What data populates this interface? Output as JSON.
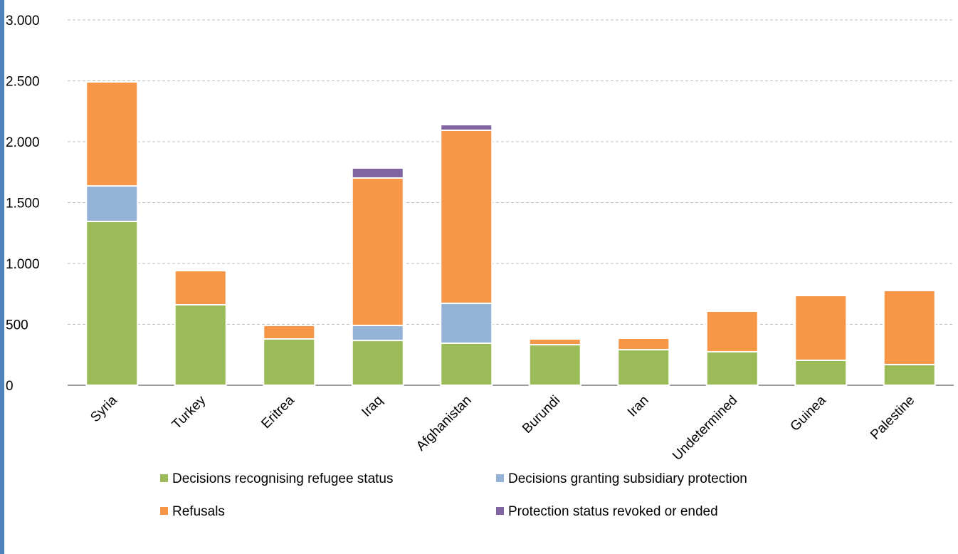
{
  "chart_data": {
    "type": "stacked_bar",
    "categories": [
      "Syria",
      "Turkey",
      "Eritrea",
      "Iraq",
      "Afghanistan",
      "Burundi",
      "Iran",
      "Undetermined",
      "Guinea",
      "Palestine"
    ],
    "series": [
      {
        "name": "Decisions recognising refugee status",
        "color": "#9bbb59",
        "values": [
          1345,
          661,
          380,
          368,
          345,
          333,
          292,
          275,
          205,
          170
        ]
      },
      {
        "name": "Decisions granting subsidiary protection",
        "color": "#95b3d7",
        "values": [
          292,
          0,
          0,
          123,
          328,
          0,
          0,
          0,
          0,
          0
        ]
      },
      {
        "name": "Refusals",
        "color": "#f79646",
        "values": [
          854,
          280,
          111,
          1211,
          1421,
          47,
          94,
          333,
          532,
          608
        ]
      },
      {
        "name": "Protection status revoked or ended",
        "color": "#8064a2",
        "values": [
          0,
          0,
          0,
          82,
          46,
          0,
          0,
          0,
          0,
          0
        ]
      }
    ],
    "ylim": [
      0,
      3000
    ],
    "yticks": [
      0,
      500,
      {
        "value": 1000,
        "label": "1.000"
      },
      {
        "value": 1500,
        "label": "1.500"
      },
      {
        "value": 2000,
        "label": "2.000"
      },
      {
        "value": 2500,
        "label": "2.500"
      },
      {
        "value": 3000,
        "label": "3.000"
      }
    ],
    "grid": true
  }
}
